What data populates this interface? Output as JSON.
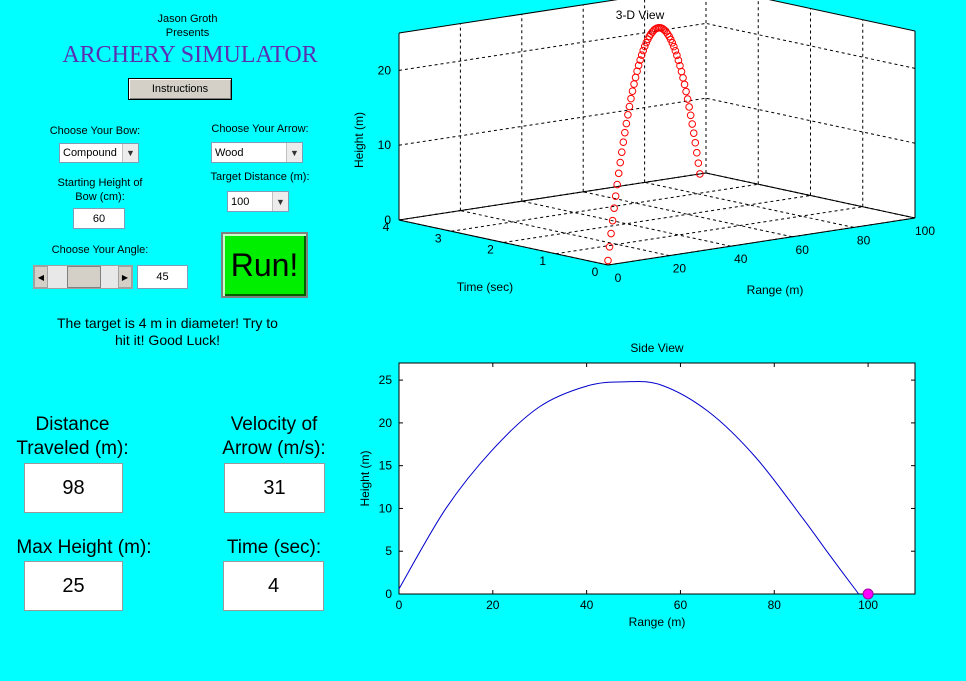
{
  "header": {
    "presenter_line1": "Jason Groth",
    "presenter_line2": "Presents",
    "app_title": "ARCHERY SIMULATOR"
  },
  "controls": {
    "instructions_label": "Instructions",
    "bow_label": "Choose Your Bow:",
    "bow_value": "Compound",
    "arrow_label": "Choose Your Arrow:",
    "arrow_value": "Wood",
    "height_label_line1": "Starting Height of",
    "height_label_line2": "Bow (cm):",
    "height_value": "60",
    "target_label": "Target Distance (m):",
    "target_value": "100",
    "angle_label": "Choose Your Angle:",
    "angle_value": "45",
    "angle_slider_fraction": 0.5,
    "run_label": "Run!"
  },
  "message": {
    "line1": "The target is 4 m in diameter! Try to",
    "line2": "hit it! Good Luck!"
  },
  "results": {
    "distance_label_line1": "Distance",
    "distance_label_line2": "Traveled (m):",
    "distance_value": "98",
    "velocity_label_line1": "Velocity of",
    "velocity_label_line2": "Arrow (m/s):",
    "velocity_value": "31",
    "maxheight_label": "Max Height (m):",
    "maxheight_value": "25",
    "time_label": "Time (sec):",
    "time_value": "4"
  },
  "colors": {
    "background": "#00FFFF",
    "trajectory_3d": "#FF0000",
    "trajectory_2d": "#0000CC",
    "target": "#FF00FF",
    "run_button": "#00EE00"
  },
  "chart_data": [
    {
      "type": "scatter",
      "title": "3-D View",
      "xlabel": "Range (m)",
      "ylabel": "Time (sec)",
      "zlabel": "Height (m)",
      "xlim": [
        0,
        100
      ],
      "ylim": [
        0,
        4
      ],
      "zlim": [
        0,
        25
      ],
      "x_ticks": [
        "0",
        "20",
        "40",
        "60",
        "80",
        "100"
      ],
      "y_ticks": [
        "0",
        "1",
        "2",
        "3",
        "4"
      ],
      "z_ticks": [
        "0",
        "10",
        "20"
      ],
      "grid": true,
      "marker": "circle",
      "series": [
        {
          "range": [
            0,
            98
          ],
          "apex_height": 25,
          "time": [
            0,
            4
          ]
        }
      ]
    },
    {
      "type": "line",
      "title": "Side View",
      "xlabel": "Range (m)",
      "ylabel": "Height (m)",
      "xlim": [
        0,
        110
      ],
      "ylim": [
        0,
        27
      ],
      "x_ticks": [
        "0",
        "20",
        "40",
        "60",
        "80",
        "100"
      ],
      "y_ticks": [
        "0",
        "5",
        "10",
        "15",
        "20",
        "25"
      ],
      "grid": false,
      "series": [
        {
          "x": [
            0,
            10,
            20,
            30,
            40,
            48,
            56,
            66,
            76,
            86,
            92,
            98
          ],
          "y": [
            0.6,
            10.0,
            16.9,
            21.9,
            24.3,
            24.8,
            24.4,
            21.3,
            16.0,
            8.9,
            4.4,
            0
          ]
        }
      ],
      "target_marker": {
        "x": 100,
        "y": 0
      }
    }
  ]
}
